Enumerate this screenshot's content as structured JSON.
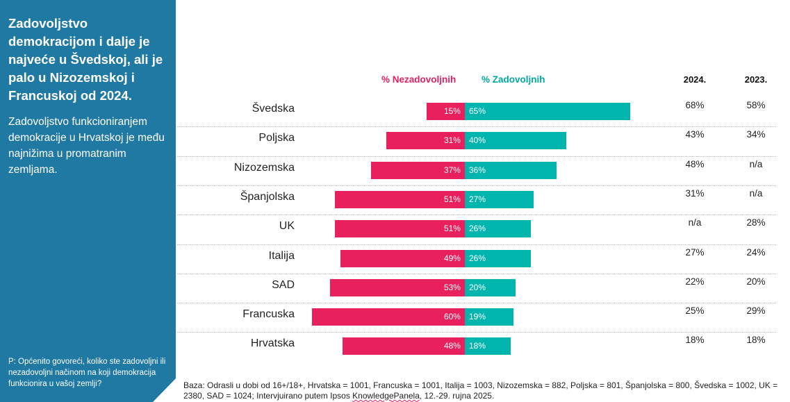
{
  "sidebar": {
    "title": "Zadovoljstvo demokracijom i dalje je najveće u Švedskoj, ali je palo u Nizozemskoj i Francuskoj od 2024.",
    "subtitle": "Zadovoljstvo funkcioniranjem demokracije u Hrvatskoj je među najnižima u promatranim zemljama.",
    "question": "P: Općenito govoreći, koliko ste zadovoljni ili nezadovoljni načinom na koji demokracija funkcionira u vašoj zemlji?"
  },
  "colors": {
    "dissatisfied": "#e8205d",
    "satisfied": "#00b5ad",
    "sidebar": "#2079a3"
  },
  "chart_data": {
    "type": "bar",
    "orientation": "horizontal-diverging",
    "categories": [
      "Švedska",
      "Poljska",
      "Nizozemska",
      "Španjolska",
      "UK",
      "Italija",
      "SAD",
      "Francuska",
      "Hrvatska"
    ],
    "series": [
      {
        "name": "% Nezadovoljnih",
        "values": [
          15,
          31,
          37,
          51,
          51,
          49,
          53,
          60,
          48
        ],
        "labels": [
          "15%",
          "31%",
          "37%",
          "51%",
          "51%",
          "49%",
          "53%",
          "60%",
          "48%"
        ]
      },
      {
        "name": "% Zadovoljnih",
        "values": [
          65,
          40,
          36,
          27,
          26,
          26,
          20,
          19,
          18
        ],
        "labels": [
          "65%",
          "40%",
          "36%",
          "27%",
          "26%",
          "26%",
          "20%",
          "19%",
          "18%"
        ]
      }
    ],
    "table": {
      "columns": [
        "2024.",
        "2023."
      ],
      "rows": [
        [
          "68%",
          "58%"
        ],
        [
          "43%",
          "34%"
        ],
        [
          "48%",
          "n/a"
        ],
        [
          "31%",
          "n/a"
        ],
        [
          "n/a",
          "28%"
        ],
        [
          "27%",
          "24%"
        ],
        [
          "22%",
          "20%"
        ],
        [
          "25%",
          "29%"
        ],
        [
          "18%",
          "18%"
        ]
      ]
    }
  },
  "footnote": {
    "text": "Baza: Odrasli u dobi od 16+/18+, Hrvatska = 1001, Francuska = 1001, Italija = 1003, Nizozemska = 882, Poljska = 801, Španjolska = 800, Švedska = 1002, UK = 2380, SAD = 1024; Intervjuirano putem Ipsos ",
    "underlined": "KnowledgePanela",
    "tail": ", 12.-29. rujna 2025."
  }
}
